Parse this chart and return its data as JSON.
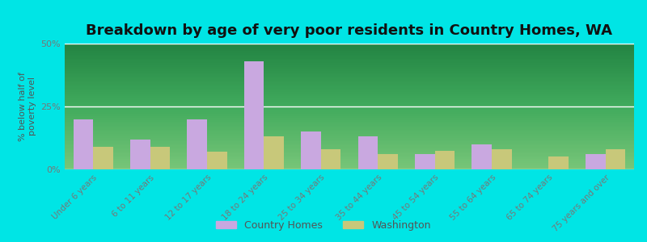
{
  "title": "Breakdown by age of very poor residents in Country Homes, WA",
  "categories": [
    "Under 6 years",
    "6 to 11 years",
    "12 to 17 years",
    "18 to 24 years",
    "25 to 34 years",
    "35 to 44 years",
    "45 to 54 years",
    "55 to 64 years",
    "65 to 74 years",
    "75 years and over"
  ],
  "country_homes": [
    20.0,
    12.0,
    20.0,
    43.0,
    15.0,
    13.0,
    6.0,
    10.0,
    0.0,
    6.0
  ],
  "washington": [
    9.0,
    9.0,
    7.0,
    13.0,
    8.0,
    6.0,
    7.5,
    8.0,
    5.0,
    8.0
  ],
  "color_homes": "#c9a8e0",
  "color_wa": "#c8c87a",
  "background_outer": "#00e5e5",
  "ylabel": "% below half of\npoverty level",
  "ylim": [
    0,
    50
  ],
  "yticks": [
    0,
    25,
    50
  ],
  "ytick_labels": [
    "0%",
    "25%",
    "50%"
  ],
  "title_fontsize": 13,
  "legend_labels": [
    "Country Homes",
    "Washington"
  ],
  "bar_width": 0.35,
  "tick_color": "#777777",
  "label_color": "#555555"
}
